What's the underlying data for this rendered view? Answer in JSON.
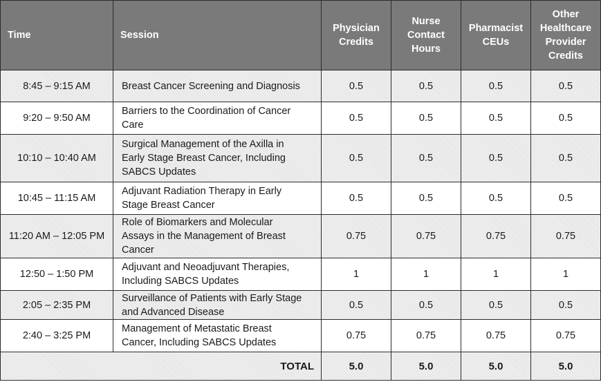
{
  "headers": {
    "time": "Time",
    "session": "Session",
    "physician": [
      "Physician",
      "Credits"
    ],
    "nurse": [
      "Nurse",
      "Contact",
      "Hours"
    ],
    "pharmacist": [
      "Pharmacist",
      "CEUs"
    ],
    "other": [
      "Other",
      "Healthcare",
      "Provider",
      "Credits"
    ]
  },
  "rows": [
    {
      "time": "8:45 – 9:15 AM",
      "session": [
        "Breast Cancer Screening and Diagnosis"
      ],
      "physician": "0.5",
      "nurse": "0.5",
      "pharmacist": "0.5",
      "other": "0.5"
    },
    {
      "time": "9:20 – 9:50 AM",
      "session": [
        "Barriers to the Coordination of Cancer",
        "Care"
      ],
      "physician": "0.5",
      "nurse": "0.5",
      "pharmacist": "0.5",
      "other": "0.5"
    },
    {
      "time": "10:10 – 10:40 AM",
      "session": [
        "Surgical Management of the Axilla in",
        "Early Stage Breast Cancer, Including",
        "SABCS Updates"
      ],
      "physician": "0.5",
      "nurse": "0.5",
      "pharmacist": "0.5",
      "other": "0.5"
    },
    {
      "time": "10:45 – 11:15 AM",
      "session": [
        "Adjuvant Radiation Therapy in Early",
        "Stage Breast Cancer"
      ],
      "physician": "0.5",
      "nurse": "0.5",
      "pharmacist": "0.5",
      "other": "0.5"
    },
    {
      "time": "11:20 AM – 12:05 PM",
      "session": [
        "Role of Biomarkers and Molecular",
        "Assays in the Management of Breast",
        "Cancer"
      ],
      "physician": "0.75",
      "nurse": "0.75",
      "pharmacist": "0.75",
      "other": "0.75"
    },
    {
      "time": "12:50 – 1:50 PM",
      "session": [
        "Adjuvant and Neoadjuvant Therapies,",
        "Including SABCS Updates"
      ],
      "physician": "1",
      "nurse": "1",
      "pharmacist": "1",
      "other": "1"
    },
    {
      "time": "2:05 – 2:35 PM",
      "session": [
        "Surveillance of Patients with Early Stage",
        "and Advanced Disease"
      ],
      "physician": "0.5",
      "nurse": "0.5",
      "pharmacist": "0.5",
      "other": "0.5"
    },
    {
      "time": "2:40 – 3:25 PM",
      "session": [
        "Management of Metastatic Breast",
        "Cancer, Including SABCS Updates"
      ],
      "physician": "0.75",
      "nurse": "0.75",
      "pharmacist": "0.75",
      "other": "0.75"
    }
  ],
  "totals": {
    "label": "TOTAL",
    "physician": "5.0",
    "nurse": "5.0",
    "pharmacist": "5.0",
    "other": "5.0"
  }
}
